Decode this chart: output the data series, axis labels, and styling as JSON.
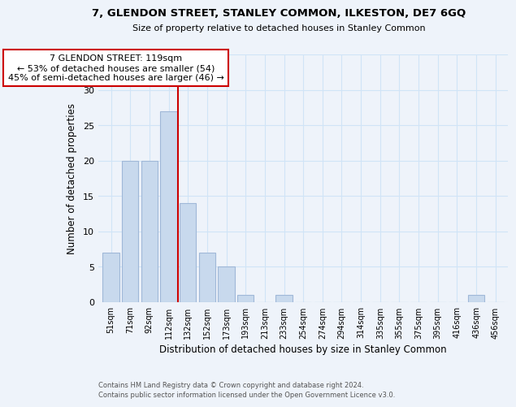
{
  "title": "7, GLENDON STREET, STANLEY COMMON, ILKESTON, DE7 6GQ",
  "subtitle": "Size of property relative to detached houses in Stanley Common",
  "xlabel": "Distribution of detached houses by size in Stanley Common",
  "ylabel": "Number of detached properties",
  "bar_labels": [
    "51sqm",
    "71sqm",
    "92sqm",
    "112sqm",
    "132sqm",
    "152sqm",
    "173sqm",
    "193sqm",
    "213sqm",
    "233sqm",
    "254sqm",
    "274sqm",
    "294sqm",
    "314sqm",
    "335sqm",
    "355sqm",
    "375sqm",
    "395sqm",
    "416sqm",
    "436sqm",
    "456sqm"
  ],
  "bar_values": [
    7,
    20,
    20,
    27,
    14,
    7,
    5,
    1,
    0,
    1,
    0,
    0,
    0,
    0,
    0,
    0,
    0,
    0,
    0,
    1,
    0
  ],
  "bar_color": "#c8d9ed",
  "bar_edge_color": "#a0b8d8",
  "ylim": [
    0,
    35
  ],
  "yticks": [
    0,
    5,
    10,
    15,
    20,
    25,
    30,
    35
  ],
  "vline_x": 3.5,
  "vline_color": "#cc0000",
  "annotation_box_text": "7 GLENDON STREET: 119sqm\n← 53% of detached houses are smaller (54)\n45% of semi-detached houses are larger (46) →",
  "footer_line1": "Contains HM Land Registry data © Crown copyright and database right 2024.",
  "footer_line2": "Contains public sector information licensed under the Open Government Licence v3.0.",
  "grid_color": "#d0e4f7",
  "background_color": "#eef3fa"
}
